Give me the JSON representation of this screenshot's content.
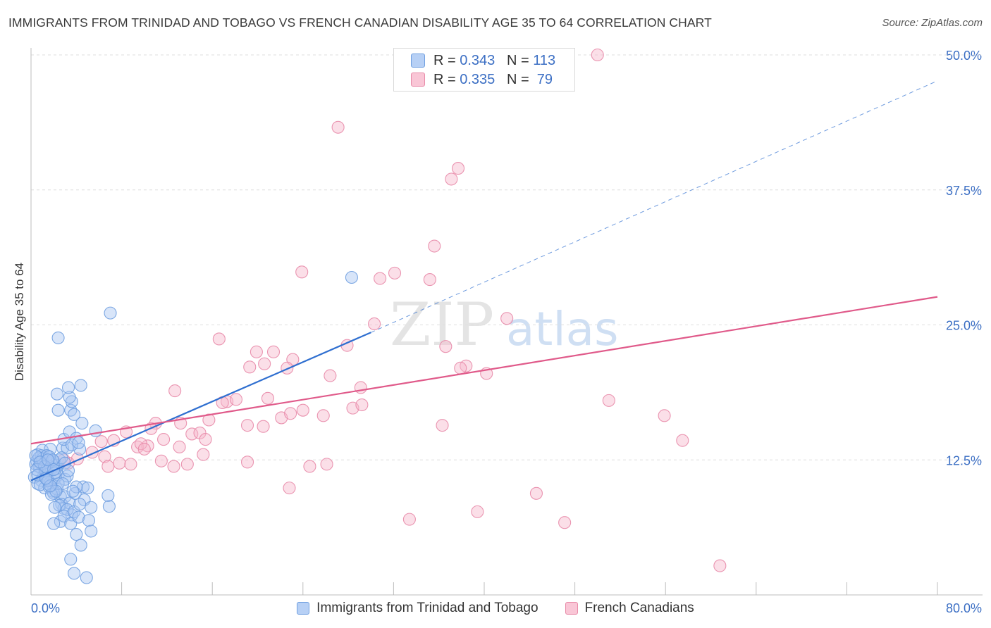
{
  "title": "IMMIGRANTS FROM TRINIDAD AND TOBAGO VS FRENCH CANADIAN DISABILITY AGE 35 TO 64 CORRELATION CHART",
  "source": "Source: ZipAtlas.com",
  "watermark": {
    "zip": "ZIP",
    "atlas": "atlas"
  },
  "colors": {
    "blue_fill": "#a9c6f2",
    "blue_stroke": "#6f9fe0",
    "blue_line": "#2f6fd0",
    "pink_fill": "#f6b8cb",
    "pink_stroke": "#e88aa8",
    "pink_line": "#e05a8a",
    "axis_label": "#3c6fc4",
    "grid": "#dedede"
  },
  "stats_legend": [
    {
      "r_label": "R = ",
      "r_value": "0.343",
      "n_label": "N = ",
      "n_value": "113"
    },
    {
      "r_label": "R = ",
      "r_value": "0.335",
      "n_label": "N = ",
      "n_value": " 79"
    }
  ],
  "legend": [
    "Immigrants from Trinidad and Tobago",
    "French Canadians"
  ],
  "chart_data": {
    "type": "scatter",
    "title": "IMMIGRANTS FROM TRINIDAD AND TOBAGO VS FRENCH CANADIAN DISABILITY AGE 35 TO 64 CORRELATION CHART",
    "xlabel": "",
    "ylabel": "Disability Age 35 to 64",
    "xlim": [
      0,
      80
    ],
    "ylim": [
      0,
      50
    ],
    "x_tick_labels": [
      "0.0%",
      "80.0%"
    ],
    "y_ticks": [
      12.5,
      25.0,
      37.5,
      50.0
    ],
    "y_tick_labels": [
      "12.5%",
      "25.0%",
      "37.5%",
      "50.0%"
    ],
    "grid": true,
    "series": [
      {
        "name": "Immigrants from Trinidad and Tobago",
        "color": "#6f9fe0",
        "r": 0.343,
        "n": 113,
        "trend": {
          "x0": 0,
          "y0": 10.6,
          "x1": 30,
          "y1": 24.3,
          "dashed_to": [
            80,
            47.6
          ]
        },
        "points": [
          [
            0.5,
            12.4
          ],
          [
            0.8,
            11.8
          ],
          [
            1.0,
            12.0
          ],
          [
            1.2,
            11.5
          ],
          [
            0.6,
            13.0
          ],
          [
            1.4,
            12.9
          ],
          [
            1.6,
            12.2
          ],
          [
            0.9,
            10.6
          ],
          [
            1.1,
            11.0
          ],
          [
            1.8,
            11.7
          ],
          [
            0.4,
            12.1
          ],
          [
            0.7,
            11.9
          ],
          [
            1.3,
            12.6
          ],
          [
            1.5,
            11.3
          ],
          [
            2.0,
            12.4
          ],
          [
            1.0,
            13.4
          ],
          [
            0.3,
            10.9
          ],
          [
            0.6,
            10.3
          ],
          [
            1.7,
            10.4
          ],
          [
            2.1,
            10.8
          ],
          [
            2.4,
            11.1
          ],
          [
            1.9,
            9.6
          ],
          [
            1.2,
            9.9
          ],
          [
            2.6,
            9.1
          ],
          [
            0.8,
            10.2
          ],
          [
            1.4,
            10.7
          ],
          [
            1.1,
            12.2
          ],
          [
            0.5,
            11.6
          ],
          [
            1.7,
            13.5
          ],
          [
            2.8,
            13.6
          ],
          [
            2.2,
            12.0
          ],
          [
            0.9,
            12.9
          ],
          [
            1.3,
            11.5
          ],
          [
            1.6,
            10.0
          ],
          [
            2.0,
            9.4
          ],
          [
            2.3,
            9.8
          ],
          [
            3.0,
            9.1
          ],
          [
            2.7,
            8.4
          ],
          [
            1.8,
            9.3
          ],
          [
            1.5,
            10.6
          ],
          [
            2.9,
            8.0
          ],
          [
            3.4,
            8.5
          ],
          [
            2.5,
            8.3
          ],
          [
            3.6,
            7.4
          ],
          [
            3.2,
            7.9
          ],
          [
            2.1,
            8.1
          ],
          [
            2.6,
            6.8
          ],
          [
            2.0,
            6.6
          ],
          [
            2.9,
            7.3
          ],
          [
            3.8,
            7.7
          ],
          [
            3.5,
            6.6
          ],
          [
            4.2,
            7.2
          ],
          [
            4.6,
            10.0
          ],
          [
            3.9,
            9.4
          ],
          [
            3.0,
            10.7
          ],
          [
            4.7,
            8.8
          ],
          [
            5.0,
            9.9
          ],
          [
            4.3,
            8.4
          ],
          [
            2.4,
            10.3
          ],
          [
            2.2,
            11.7
          ],
          [
            1.0,
            12.6
          ],
          [
            0.7,
            12.7
          ],
          [
            1.4,
            12.9
          ],
          [
            3.2,
            13.6
          ],
          [
            2.9,
            14.4
          ],
          [
            3.4,
            15.1
          ],
          [
            4.0,
            14.5
          ],
          [
            4.3,
            13.5
          ],
          [
            3.6,
            13.9
          ],
          [
            2.4,
            17.1
          ],
          [
            3.5,
            17.1
          ],
          [
            3.6,
            17.9
          ],
          [
            3.4,
            18.3
          ],
          [
            2.3,
            18.6
          ],
          [
            4.5,
            15.9
          ],
          [
            4.4,
            19.4
          ],
          [
            3.3,
            19.2
          ],
          [
            3.8,
            16.7
          ],
          [
            5.7,
            15.2
          ],
          [
            4.2,
            14.1
          ],
          [
            3.2,
            11.0
          ],
          [
            2.5,
            12.5
          ],
          [
            1.6,
            12.8
          ],
          [
            0.4,
            12.9
          ],
          [
            2.7,
            12.7
          ],
          [
            3.0,
            12.2
          ],
          [
            1.9,
            12.5
          ],
          [
            3.3,
            11.5
          ],
          [
            4.0,
            10.0
          ],
          [
            3.7,
            9.6
          ],
          [
            6.9,
            8.2
          ],
          [
            6.8,
            9.2
          ],
          [
            5.3,
            8.1
          ],
          [
            5.1,
            6.9
          ],
          [
            5.3,
            5.9
          ],
          [
            4.0,
            5.6
          ],
          [
            4.4,
            4.6
          ],
          [
            3.5,
            3.3
          ],
          [
            3.8,
            2.0
          ],
          [
            4.9,
            1.6
          ],
          [
            7.0,
            26.1
          ],
          [
            2.4,
            23.8
          ],
          [
            28.3,
            29.4
          ],
          [
            2.1,
            11.3
          ],
          [
            1.2,
            11.9
          ],
          [
            0.8,
            12.3
          ],
          [
            1.5,
            12.5
          ],
          [
            2.8,
            10.3
          ],
          [
            2.2,
            9.6
          ],
          [
            1.7,
            10.1
          ],
          [
            0.6,
            11.1
          ],
          [
            1.3,
            10.8
          ],
          [
            2.0,
            11.6
          ]
        ]
      },
      {
        "name": "French Canadians",
        "color": "#e88aa8",
        "r": 0.335,
        "n": 79,
        "trend": {
          "x0": 0,
          "y0": 14.0,
          "x1": 80,
          "y1": 27.6
        },
        "points": [
          [
            50.0,
            50.0
          ],
          [
            27.1,
            43.3
          ],
          [
            37.7,
            39.5
          ],
          [
            37.1,
            38.5
          ],
          [
            35.6,
            32.3
          ],
          [
            23.9,
            29.9
          ],
          [
            32.1,
            29.8
          ],
          [
            30.8,
            29.3
          ],
          [
            35.2,
            29.2
          ],
          [
            30.3,
            25.1
          ],
          [
            42.0,
            25.6
          ],
          [
            16.6,
            23.7
          ],
          [
            27.9,
            23.1
          ],
          [
            36.6,
            23.0
          ],
          [
            19.9,
            22.5
          ],
          [
            21.4,
            22.5
          ],
          [
            20.6,
            21.4
          ],
          [
            23.1,
            21.8
          ],
          [
            19.3,
            21.1
          ],
          [
            22.6,
            21.0
          ],
          [
            38.4,
            21.2
          ],
          [
            26.4,
            20.3
          ],
          [
            40.2,
            20.5
          ],
          [
            29.1,
            19.2
          ],
          [
            12.7,
            18.9
          ],
          [
            28.4,
            17.3
          ],
          [
            29.2,
            17.6
          ],
          [
            17.3,
            17.9
          ],
          [
            18.1,
            18.1
          ],
          [
            20.9,
            18.2
          ],
          [
            51.0,
            18.0
          ],
          [
            22.1,
            16.4
          ],
          [
            22.9,
            16.8
          ],
          [
            25.8,
            16.6
          ],
          [
            55.9,
            16.6
          ],
          [
            13.2,
            15.9
          ],
          [
            15.7,
            16.2
          ],
          [
            11.0,
            15.9
          ],
          [
            10.6,
            15.4
          ],
          [
            8.4,
            15.1
          ],
          [
            19.1,
            15.7
          ],
          [
            20.5,
            15.6
          ],
          [
            14.2,
            14.9
          ],
          [
            14.9,
            15.0
          ],
          [
            15.4,
            14.4
          ],
          [
            11.7,
            14.4
          ],
          [
            9.4,
            13.7
          ],
          [
            10.3,
            13.8
          ],
          [
            13.1,
            13.7
          ],
          [
            15.2,
            13.0
          ],
          [
            9.7,
            14.0
          ],
          [
            10.0,
            13.5
          ],
          [
            6.2,
            14.2
          ],
          [
            7.3,
            14.3
          ],
          [
            5.4,
            13.2
          ],
          [
            6.5,
            12.8
          ],
          [
            4.1,
            12.6
          ],
          [
            3.3,
            12.2
          ],
          [
            2.9,
            12.5
          ],
          [
            7.8,
            12.2
          ],
          [
            8.8,
            12.1
          ],
          [
            6.8,
            11.9
          ],
          [
            11.5,
            12.4
          ],
          [
            12.6,
            11.9
          ],
          [
            13.8,
            12.1
          ],
          [
            19.1,
            12.3
          ],
          [
            24.6,
            11.9
          ],
          [
            26.1,
            12.1
          ],
          [
            36.3,
            15.7
          ],
          [
            57.5,
            14.3
          ],
          [
            16.9,
            17.8
          ],
          [
            24.0,
            17.1
          ],
          [
            37.9,
            21.0
          ],
          [
            22.8,
            9.9
          ],
          [
            33.4,
            7.0
          ],
          [
            39.4,
            7.7
          ],
          [
            44.6,
            9.4
          ],
          [
            47.1,
            6.7
          ],
          [
            60.8,
            2.7
          ]
        ]
      }
    ]
  }
}
